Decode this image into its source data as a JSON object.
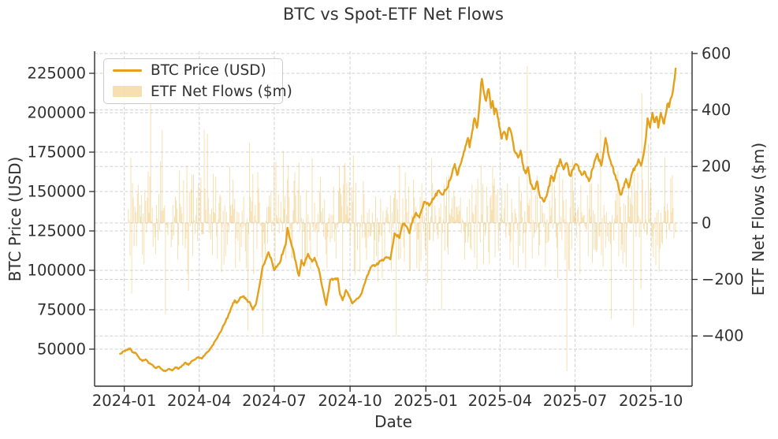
{
  "chart_data": {
    "type": "line+bar",
    "title": "BTC vs Spot-ETF Net Flows",
    "xlabel": "Date",
    "ylabel_left": "BTC Price (USD)",
    "ylabel_right": "ETF Net Flows ($m)",
    "legend_position": "upper-left",
    "grid": {
      "show": true,
      "color": "#cdcdcd",
      "dashed": true
    },
    "x_lim": [
      "2023-11-26",
      "2025-11-20"
    ],
    "x_ticks": [
      {
        "date": "2024-01-01",
        "label": "2024-01"
      },
      {
        "date": "2024-04-01",
        "label": "2024-04"
      },
      {
        "date": "2024-07-01",
        "label": "2024-07"
      },
      {
        "date": "2024-10-01",
        "label": "2024-10"
      },
      {
        "date": "2025-01-01",
        "label": "2025-01"
      },
      {
        "date": "2025-04-01",
        "label": "2025-04"
      },
      {
        "date": "2025-07-01",
        "label": "2025-07"
      },
      {
        "date": "2025-10-01",
        "label": "2025-10"
      }
    ],
    "y_left": {
      "lim": [
        26500,
        239000
      ],
      "ticks": [
        {
          "v": 50000,
          "label": "50000"
        },
        {
          "v": 75000,
          "label": "75000"
        },
        {
          "v": 100000,
          "label": "100000"
        },
        {
          "v": 125000,
          "label": "125000"
        },
        {
          "v": 150000,
          "label": "150000"
        },
        {
          "v": 175000,
          "label": "175000"
        },
        {
          "v": 200000,
          "label": "200000"
        },
        {
          "v": 225000,
          "label": "225000"
        }
      ]
    },
    "y_right": {
      "lim": [
        -578,
        608
      ],
      "ticks": [
        {
          "v": -400,
          "label": "−400"
        },
        {
          "v": -200,
          "label": "−200"
        },
        {
          "v": 0,
          "label": "0"
        },
        {
          "v": 200,
          "label": "200"
        },
        {
          "v": 400,
          "label": "400"
        },
        {
          "v": 600,
          "label": "600"
        }
      ]
    },
    "series": [
      {
        "name": "BTC Price (USD)",
        "type": "line",
        "axis": "left",
        "color": "#E3A11C",
        "line_width": 2.4,
        "anchors": [
          [
            "2023-12-27",
            47000
          ],
          [
            "2023-12-31",
            48500
          ],
          [
            "2024-01-04",
            49500
          ],
          [
            "2024-01-08",
            50500
          ],
          [
            "2024-01-11",
            48000
          ],
          [
            "2024-01-15",
            47500
          ],
          [
            "2024-01-19",
            44500
          ],
          [
            "2024-01-23",
            42500
          ],
          [
            "2024-01-27",
            43500
          ],
          [
            "2024-01-31",
            41000
          ],
          [
            "2024-02-04",
            40000
          ],
          [
            "2024-02-08",
            38000
          ],
          [
            "2024-02-12",
            39000
          ],
          [
            "2024-02-16",
            37000
          ],
          [
            "2024-02-20",
            36000
          ],
          [
            "2024-02-24",
            37500
          ],
          [
            "2024-02-28",
            36500
          ],
          [
            "2024-03-03",
            38500
          ],
          [
            "2024-03-07",
            37500
          ],
          [
            "2024-03-11",
            39500
          ],
          [
            "2024-03-15",
            41500
          ],
          [
            "2024-03-19",
            40000
          ],
          [
            "2024-03-23",
            42500
          ],
          [
            "2024-03-27",
            43500
          ],
          [
            "2024-03-31",
            45000
          ],
          [
            "2024-04-04",
            44000
          ],
          [
            "2024-04-08",
            46500
          ],
          [
            "2024-04-12",
            48500
          ],
          [
            "2024-04-16",
            51500
          ],
          [
            "2024-04-20",
            55000
          ],
          [
            "2024-04-24",
            58500
          ],
          [
            "2024-04-28",
            62000
          ],
          [
            "2024-05-02",
            66500
          ],
          [
            "2024-05-06",
            71000
          ],
          [
            "2024-05-10",
            76500
          ],
          [
            "2024-05-14",
            81000
          ],
          [
            "2024-05-17",
            79500
          ],
          [
            "2024-05-20",
            82000
          ],
          [
            "2024-05-24",
            83500
          ],
          [
            "2024-05-28",
            81500
          ],
          [
            "2024-06-01",
            80000
          ],
          [
            "2024-06-05",
            75000
          ],
          [
            "2024-06-09",
            79000
          ],
          [
            "2024-06-13",
            90000
          ],
          [
            "2024-06-17",
            102500
          ],
          [
            "2024-06-20",
            106000
          ],
          [
            "2024-06-24",
            111500
          ],
          [
            "2024-06-28",
            106000
          ],
          [
            "2024-07-01",
            100000
          ],
          [
            "2024-07-05",
            103000
          ],
          [
            "2024-07-08",
            105000
          ],
          [
            "2024-07-12",
            112000
          ],
          [
            "2024-07-15",
            116500
          ],
          [
            "2024-07-17",
            127000
          ],
          [
            "2024-07-20",
            120000
          ],
          [
            "2024-07-24",
            113000
          ],
          [
            "2024-07-28",
            103000
          ],
          [
            "2024-07-31",
            96500
          ],
          [
            "2024-08-03",
            106500
          ],
          [
            "2024-08-06",
            103000
          ],
          [
            "2024-08-11",
            110500
          ],
          [
            "2024-08-16",
            105500
          ],
          [
            "2024-08-19",
            108000
          ],
          [
            "2024-08-24",
            101000
          ],
          [
            "2024-08-28",
            90000
          ],
          [
            "2024-09-02",
            78000
          ],
          [
            "2024-09-07",
            94000
          ],
          [
            "2024-09-12",
            94500
          ],
          [
            "2024-09-16",
            95000
          ],
          [
            "2024-09-19",
            84500
          ],
          [
            "2024-09-22",
            81000
          ],
          [
            "2024-09-26",
            87500
          ],
          [
            "2024-10-01",
            82500
          ],
          [
            "2024-10-04",
            79000
          ],
          [
            "2024-10-09",
            82000
          ],
          [
            "2024-10-13",
            83500
          ],
          [
            "2024-10-17",
            89000
          ],
          [
            "2024-10-21",
            95500
          ],
          [
            "2024-10-26",
            102000
          ],
          [
            "2024-11-02",
            103500
          ],
          [
            "2024-11-07",
            106000
          ],
          [
            "2024-11-14",
            108500
          ],
          [
            "2024-11-19",
            107000
          ],
          [
            "2024-11-24",
            123500
          ],
          [
            "2024-11-30",
            120500
          ],
          [
            "2024-12-04",
            129500
          ],
          [
            "2024-12-09",
            127500
          ],
          [
            "2024-12-12",
            123500
          ],
          [
            "2024-12-15",
            130000
          ],
          [
            "2024-12-20",
            136500
          ],
          [
            "2024-12-24",
            133500
          ],
          [
            "2024-12-30",
            143500
          ],
          [
            "2025-01-05",
            141000
          ],
          [
            "2025-01-11",
            146000
          ],
          [
            "2025-01-16",
            150500
          ],
          [
            "2025-01-21",
            148000
          ],
          [
            "2025-01-26",
            151500
          ],
          [
            "2025-01-30",
            157000
          ],
          [
            "2025-02-02",
            162000
          ],
          [
            "2025-02-05",
            167500
          ],
          [
            "2025-02-08",
            160500
          ],
          [
            "2025-02-11",
            166000
          ],
          [
            "2025-02-14",
            171000
          ],
          [
            "2025-02-17",
            176000
          ],
          [
            "2025-02-19",
            180000
          ],
          [
            "2025-02-21",
            184000
          ],
          [
            "2025-02-23",
            178000
          ],
          [
            "2025-02-25",
            184000
          ],
          [
            "2025-02-27",
            190000
          ],
          [
            "2025-03-01",
            196500
          ],
          [
            "2025-03-04",
            190500
          ],
          [
            "2025-03-06",
            199000
          ],
          [
            "2025-03-08",
            211000
          ],
          [
            "2025-03-10",
            221500
          ],
          [
            "2025-03-13",
            211500
          ],
          [
            "2025-03-15",
            207500
          ],
          [
            "2025-03-17",
            214000
          ],
          [
            "2025-03-19",
            212500
          ],
          [
            "2025-03-21",
            203000
          ],
          [
            "2025-03-23",
            207500
          ],
          [
            "2025-03-25",
            199000
          ],
          [
            "2025-03-27",
            202500
          ],
          [
            "2025-03-29",
            197500
          ],
          [
            "2025-03-31",
            191500
          ],
          [
            "2025-04-03",
            183500
          ],
          [
            "2025-04-06",
            188000
          ],
          [
            "2025-04-09",
            183000
          ],
          [
            "2025-04-12",
            190500
          ],
          [
            "2025-04-15",
            186500
          ],
          [
            "2025-04-18",
            176500
          ],
          [
            "2025-04-23",
            171500
          ],
          [
            "2025-04-26",
            176000
          ],
          [
            "2025-04-29",
            166500
          ],
          [
            "2025-05-02",
            161500
          ],
          [
            "2025-05-05",
            165500
          ],
          [
            "2025-05-08",
            155000
          ],
          [
            "2025-05-13",
            151500
          ],
          [
            "2025-05-16",
            156500
          ],
          [
            "2025-05-19",
            147500
          ],
          [
            "2025-05-24",
            143500
          ],
          [
            "2025-05-27",
            146500
          ],
          [
            "2025-05-29",
            150500
          ],
          [
            "2025-06-02",
            160000
          ],
          [
            "2025-06-05",
            156500
          ],
          [
            "2025-06-09",
            165000
          ],
          [
            "2025-06-13",
            170500
          ],
          [
            "2025-06-17",
            164000
          ],
          [
            "2025-06-21",
            168000
          ],
          [
            "2025-06-25",
            160000
          ],
          [
            "2025-06-28",
            164000
          ],
          [
            "2025-07-01",
            167000
          ],
          [
            "2025-07-04",
            166500
          ],
          [
            "2025-07-09",
            160500
          ],
          [
            "2025-07-13",
            162500
          ],
          [
            "2025-07-18",
            156500
          ],
          [
            "2025-07-23",
            165000
          ],
          [
            "2025-07-28",
            174000
          ],
          [
            "2025-08-02",
            166500
          ],
          [
            "2025-08-07",
            184000
          ],
          [
            "2025-08-10",
            175000
          ],
          [
            "2025-08-15",
            166500
          ],
          [
            "2025-08-19",
            160000
          ],
          [
            "2025-08-22",
            155000
          ],
          [
            "2025-08-25",
            148000
          ],
          [
            "2025-08-29",
            152500
          ],
          [
            "2025-09-01",
            158000
          ],
          [
            "2025-09-04",
            152500
          ],
          [
            "2025-09-08",
            161500
          ],
          [
            "2025-09-13",
            166500
          ],
          [
            "2025-09-16",
            170500
          ],
          [
            "2025-09-19",
            166500
          ],
          [
            "2025-09-22",
            173000
          ],
          [
            "2025-09-25",
            184000
          ],
          [
            "2025-09-27",
            196500
          ],
          [
            "2025-09-30",
            190500
          ],
          [
            "2025-10-03",
            200000
          ],
          [
            "2025-10-06",
            194000
          ],
          [
            "2025-10-08",
            197500
          ],
          [
            "2025-10-10",
            190500
          ],
          [
            "2025-10-13",
            200000
          ],
          [
            "2025-10-17",
            193000
          ],
          [
            "2025-10-20",
            201500
          ],
          [
            "2025-10-22",
            206000
          ],
          [
            "2025-10-23",
            203500
          ],
          [
            "2025-10-27",
            211500
          ],
          [
            "2025-10-29",
            219000
          ],
          [
            "2025-10-31",
            228000
          ]
        ]
      },
      {
        "name": "ETF Net Flows ($m)",
        "type": "bar",
        "axis": "right",
        "color": "#EDBE5E",
        "opacity": 0.48,
        "start": "2024-01-06",
        "end": "2025-10-31",
        "typical_daily_range": [
          -300,
          300
        ],
        "noise": {
          "seed": 7,
          "mean": 15,
          "spread": 225,
          "spike_prob": 0.05,
          "spike_mult": 2.0,
          "clip": 330
        },
        "major_spikes": {
          "2024-01-10": -250,
          "2024-02-02": 505,
          "2024-03-19": -240,
          "2024-04-11": 315,
          "2024-05-30": -380,
          "2024-06-17": -395,
          "2024-07-12": 255,
          "2024-10-05": 240,
          "2024-11-26": -400,
          "2025-01-08": 230,
          "2025-05-04": 555,
          "2025-06-21": -525,
          "2025-08-14": -340,
          "2025-09-10": -365,
          "2025-09-20": 460
        }
      }
    ]
  }
}
